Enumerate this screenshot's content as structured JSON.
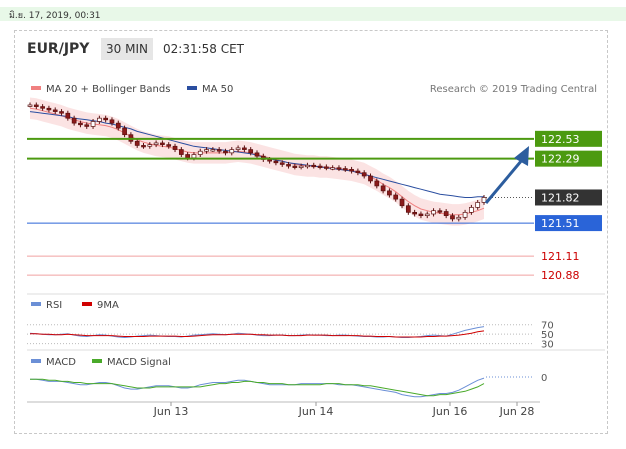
{
  "date_bar": "มิ.ย. 17, 2019, 00:31",
  "header": {
    "pair": "EUR/JPY",
    "timeframe": "30 MIN",
    "clock": "02:31:58 CET"
  },
  "legend": {
    "ma20": "MA 20 + Bollinger Bands",
    "ma50": "MA 50",
    "credit": "Research © 2019 Trading Central"
  },
  "colors": {
    "green": "#4c9a10",
    "blue": "#2a64d8",
    "red": "#e05050",
    "dark": "#333333",
    "arrow": "#2c5d9e"
  },
  "levels": [
    {
      "value": "122.53",
      "kind": "resistance",
      "style": "green-box"
    },
    {
      "value": "122.29",
      "kind": "resistance",
      "style": "green-box"
    },
    {
      "value": "121.82",
      "kind": "last-price",
      "style": "dark-box"
    },
    {
      "value": "121.51",
      "kind": "support",
      "style": "blue-box"
    },
    {
      "value": "121.11",
      "kind": "support",
      "style": "red-text"
    },
    {
      "value": "120.88",
      "kind": "support",
      "style": "red-text"
    }
  ],
  "rsi": {
    "label": "RSI",
    "ma_label": "9MA",
    "ticks": [
      "70",
      "50",
      "30"
    ]
  },
  "macd": {
    "label": "MACD",
    "signal_label": "MACD Signal",
    "ticks": [
      "0"
    ]
  },
  "x_axis": [
    "Jun 13",
    "Jun 14",
    "Jun 16",
    "Jun 28"
  ],
  "chart_data": {
    "type": "line",
    "instrument": "EUR/JPY",
    "timeframe": "30 MIN",
    "x_ticks": [
      "Jun 13",
      "Jun 14",
      "Jun 16",
      "Jun 28"
    ],
    "ylim": [
      120.7,
      123.0
    ],
    "price_series": [
      {
        "name": "EUR/JPY",
        "values": [
          122.94,
          122.92,
          122.9,
          122.88,
          122.86,
          122.84,
          122.78,
          122.72,
          122.7,
          122.68,
          122.74,
          122.78,
          122.76,
          122.72,
          122.66,
          122.58,
          122.5,
          122.45,
          122.44,
          122.46,
          122.48,
          122.46,
          122.44,
          122.4,
          122.34,
          122.3,
          122.34,
          122.38,
          122.4,
          122.4,
          122.38,
          122.36,
          122.4,
          122.42,
          122.4,
          122.36,
          122.32,
          122.28,
          122.26,
          122.24,
          122.22,
          122.2,
          122.19,
          122.2,
          122.21,
          122.2,
          122.19,
          122.18,
          122.18,
          122.17,
          122.16,
          122.14,
          122.12,
          122.08,
          122.02,
          121.96,
          121.9,
          121.85,
          121.8,
          121.72,
          121.64,
          121.62,
          121.6,
          121.62,
          121.66,
          121.65,
          121.6,
          121.56,
          121.58,
          121.64,
          121.7,
          121.76,
          121.82
        ]
      },
      {
        "name": "MA 20",
        "values": [
          122.9,
          122.89,
          122.87,
          122.85,
          122.83,
          122.81,
          122.78,
          122.76,
          122.74,
          122.72,
          122.71,
          122.7,
          122.69,
          122.67,
          122.64,
          122.6,
          122.56,
          122.52,
          122.49,
          122.47,
          122.45,
          122.44,
          122.43,
          122.41,
          122.39,
          122.37,
          122.36,
          122.36,
          122.36,
          122.36,
          122.36,
          122.36,
          122.37,
          122.38,
          122.37,
          122.36,
          122.34,
          122.32,
          122.3,
          122.28,
          122.26,
          122.24,
          122.22,
          122.21,
          122.2,
          122.2,
          122.19,
          122.19,
          122.18,
          122.17,
          122.16,
          122.15,
          122.13,
          122.11,
          122.07,
          122.03,
          121.98,
          121.94,
          121.89,
          121.83,
          121.77,
          121.72,
          121.68,
          121.66,
          121.64,
          121.63,
          121.62,
          121.61,
          121.61,
          121.62,
          121.64,
          121.66,
          121.69
        ]
      },
      {
        "name": "MA 50",
        "values": [
          122.86,
          122.85,
          122.84,
          122.83,
          122.82,
          122.81,
          122.8,
          122.78,
          122.77,
          122.76,
          122.75,
          122.74,
          122.72,
          122.71,
          122.69,
          122.67,
          122.65,
          122.62,
          122.6,
          122.58,
          122.56,
          122.54,
          122.52,
          122.5,
          122.48,
          122.46,
          122.44,
          122.43,
          122.42,
          122.41,
          122.4,
          122.39,
          122.38,
          122.37,
          122.36,
          122.35,
          122.33,
          122.31,
          122.29,
          122.27,
          122.26,
          122.24,
          122.23,
          122.22,
          122.21,
          122.2,
          122.19,
          122.18,
          122.17,
          122.16,
          122.15,
          122.14,
          122.12,
          122.1,
          122.08,
          122.06,
          122.04,
          122.02,
          122.0,
          121.98,
          121.96,
          121.94,
          121.92,
          121.9,
          121.88,
          121.86,
          121.85,
          121.84,
          121.83,
          121.82,
          121.82,
          121.83,
          121.83
        ]
      }
    ],
    "rsi_series": [
      {
        "name": "RSI",
        "values": [
          52,
          51,
          50,
          49,
          49,
          50,
          51,
          48,
          46,
          45,
          47,
          49,
          48,
          46,
          44,
          43,
          44,
          46,
          47,
          48,
          47,
          46,
          45,
          45,
          44,
          46,
          48,
          49,
          50,
          51,
          50,
          49,
          50,
          52,
          51,
          50,
          48,
          47,
          47,
          48,
          48,
          47,
          47,
          48,
          49,
          48,
          48,
          47,
          47,
          48,
          48,
          47,
          46,
          45,
          45,
          44,
          44,
          45,
          44,
          43,
          43,
          44,
          45,
          47,
          48,
          47,
          46,
          50,
          54,
          58,
          61,
          64,
          66
        ]
      },
      {
        "name": "9MA",
        "values": [
          51,
          51,
          50,
          50,
          49,
          49,
          50,
          49,
          48,
          47,
          47,
          47,
          47,
          47,
          46,
          45,
          45,
          45,
          45,
          46,
          46,
          46,
          46,
          46,
          45,
          45,
          46,
          47,
          48,
          49,
          49,
          49,
          50,
          50,
          50,
          50,
          49,
          49,
          48,
          48,
          48,
          47,
          47,
          47,
          48,
          48,
          48,
          48,
          47,
          47,
          47,
          47,
          47,
          46,
          46,
          45,
          45,
          45,
          44,
          44,
          44,
          44,
          44,
          45,
          45,
          46,
          46,
          47,
          48,
          50,
          52,
          55,
          57
        ]
      }
    ],
    "macd_series": [
      {
        "name": "MACD",
        "values": [
          -0.02,
          -0.02,
          -0.03,
          -0.04,
          -0.04,
          -0.04,
          -0.05,
          -0.06,
          -0.07,
          -0.07,
          -0.06,
          -0.05,
          -0.05,
          -0.06,
          -0.08,
          -0.1,
          -0.11,
          -0.11,
          -0.1,
          -0.09,
          -0.08,
          -0.08,
          -0.08,
          -0.09,
          -0.1,
          -0.1,
          -0.09,
          -0.07,
          -0.06,
          -0.05,
          -0.05,
          -0.05,
          -0.04,
          -0.03,
          -0.03,
          -0.04,
          -0.05,
          -0.06,
          -0.07,
          -0.07,
          -0.07,
          -0.07,
          -0.07,
          -0.06,
          -0.06,
          -0.06,
          -0.06,
          -0.06,
          -0.06,
          -0.07,
          -0.07,
          -0.07,
          -0.08,
          -0.09,
          -0.1,
          -0.11,
          -0.12,
          -0.13,
          -0.14,
          -0.16,
          -0.17,
          -0.18,
          -0.18,
          -0.17,
          -0.16,
          -0.15,
          -0.15,
          -0.14,
          -0.12,
          -0.09,
          -0.06,
          -0.03,
          -0.01
        ]
      },
      {
        "name": "MACD Signal",
        "values": [
          -0.02,
          -0.02,
          -0.02,
          -0.03,
          -0.03,
          -0.04,
          -0.04,
          -0.05,
          -0.05,
          -0.06,
          -0.06,
          -0.06,
          -0.06,
          -0.06,
          -0.07,
          -0.08,
          -0.09,
          -0.1,
          -0.1,
          -0.1,
          -0.09,
          -0.09,
          -0.09,
          -0.09,
          -0.09,
          -0.09,
          -0.09,
          -0.09,
          -0.08,
          -0.07,
          -0.06,
          -0.06,
          -0.05,
          -0.05,
          -0.04,
          -0.04,
          -0.05,
          -0.05,
          -0.06,
          -0.06,
          -0.06,
          -0.07,
          -0.07,
          -0.07,
          -0.07,
          -0.07,
          -0.07,
          -0.06,
          -0.06,
          -0.06,
          -0.07,
          -0.07,
          -0.07,
          -0.08,
          -0.08,
          -0.09,
          -0.1,
          -0.11,
          -0.12,
          -0.13,
          -0.14,
          -0.15,
          -0.16,
          -0.17,
          -0.17,
          -0.16,
          -0.16,
          -0.15,
          -0.14,
          -0.13,
          -0.11,
          -0.09,
          -0.06
        ]
      }
    ],
    "levels": [
      122.53,
      122.29,
      121.82,
      121.51,
      121.11,
      120.88
    ],
    "legend_position": "top-left",
    "grid": false
  }
}
